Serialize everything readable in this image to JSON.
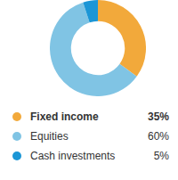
{
  "chart_data": {
    "type": "doughnut",
    "categories": [
      "Fixed income",
      "Equities",
      "Cash investments"
    ],
    "values": [
      35,
      60,
      5
    ],
    "value_labels": [
      "35%",
      "60%",
      "5%"
    ],
    "colors": [
      "#f2a93b",
      "#80c4e4",
      "#1b96d6"
    ],
    "legend": "bottom"
  }
}
